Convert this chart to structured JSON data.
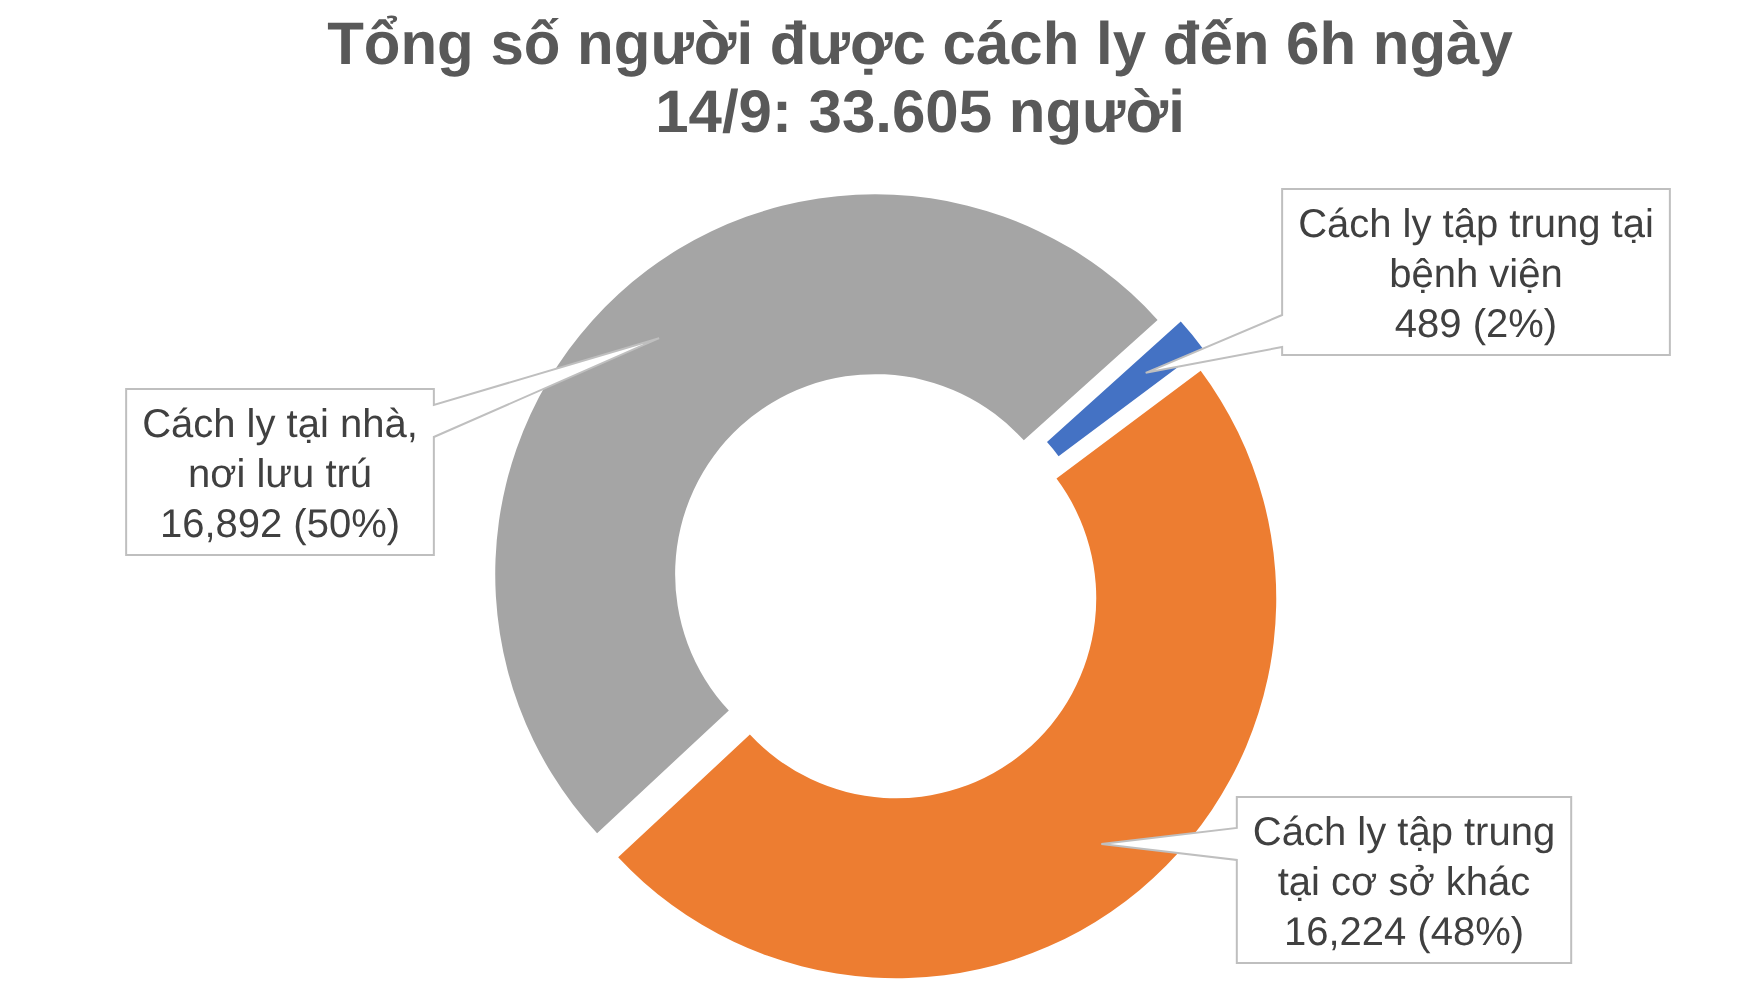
{
  "chart_data": {
    "type": "donut",
    "title": "Tổng số người được cách ly đến 6h ngày 14/9: 33.605 người",
    "categories": [
      "Cách ly tập trung tại bệnh viện",
      "Cách ly tập trung tại cơ sở khác",
      "Cách ly tại nhà, nơi lưu trú"
    ],
    "values": [
      489,
      16224,
      16892
    ],
    "colors": [
      "#4472c4",
      "#ed7d31",
      "#a5a5a5"
    ],
    "value_labels": [
      "489 (2%)",
      "16,224 (48%)",
      "16,892 (50%)"
    ]
  }
}
